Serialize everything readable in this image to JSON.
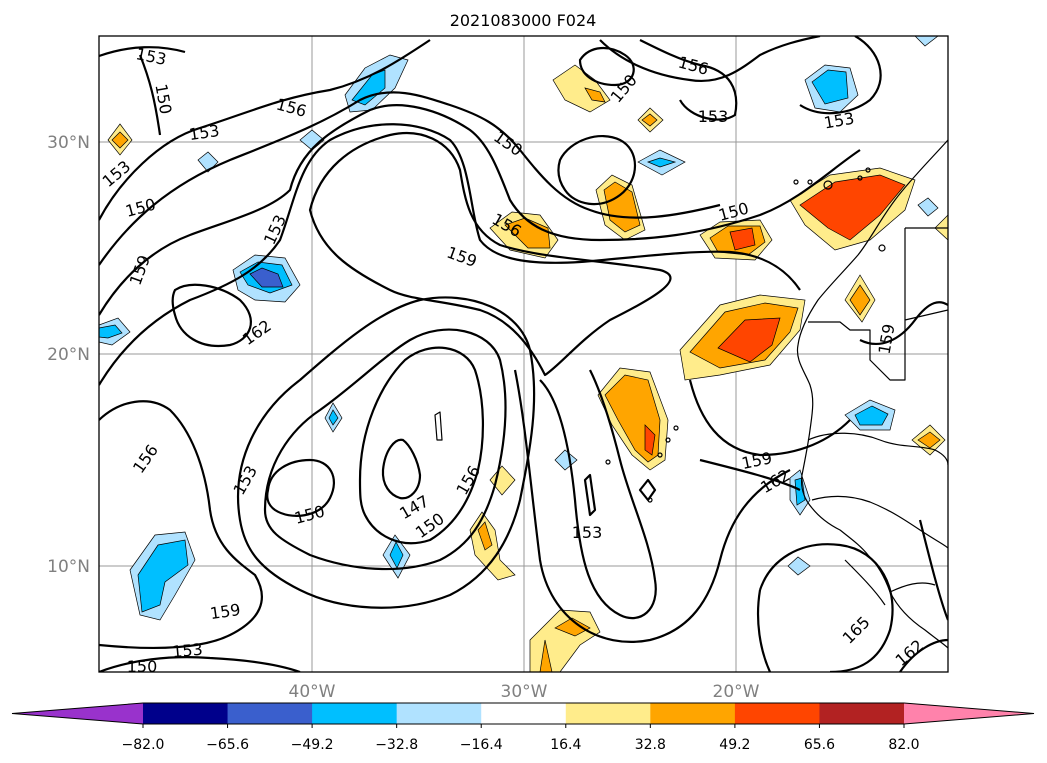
{
  "title": "2021083000 F024",
  "lat_labels": [
    "30°N",
    "20°N",
    "10°N"
  ],
  "lon_labels": [
    "40°W",
    "30°W",
    "20°W"
  ],
  "colorbar": {
    "colors": [
      "#9932cc",
      "#00008b",
      "#3a5fcd",
      "#00bfff",
      "#b0e2ff",
      "#ffffff",
      "#ffec8b",
      "#ffa500",
      "#ff4500",
      "#b22222",
      "#ff82ab"
    ],
    "tick_labels": [
      "−82.0",
      "−65.6",
      "−49.2",
      "−32.8",
      "−16.4",
      "16.4",
      "32.8",
      "49.2",
      "65.6",
      "82.0"
    ]
  },
  "contour_labels": [
    "153",
    "150",
    "156",
    "153",
    "153",
    "150",
    "159",
    "153",
    "162",
    "156",
    "153",
    "150",
    "147",
    "150",
    "156",
    "159",
    "153",
    "150",
    "156",
    "150",
    "153",
    "156",
    "153",
    "150",
    "159",
    "159",
    "162",
    "165",
    "162",
    "159",
    "153",
    "150"
  ]
}
